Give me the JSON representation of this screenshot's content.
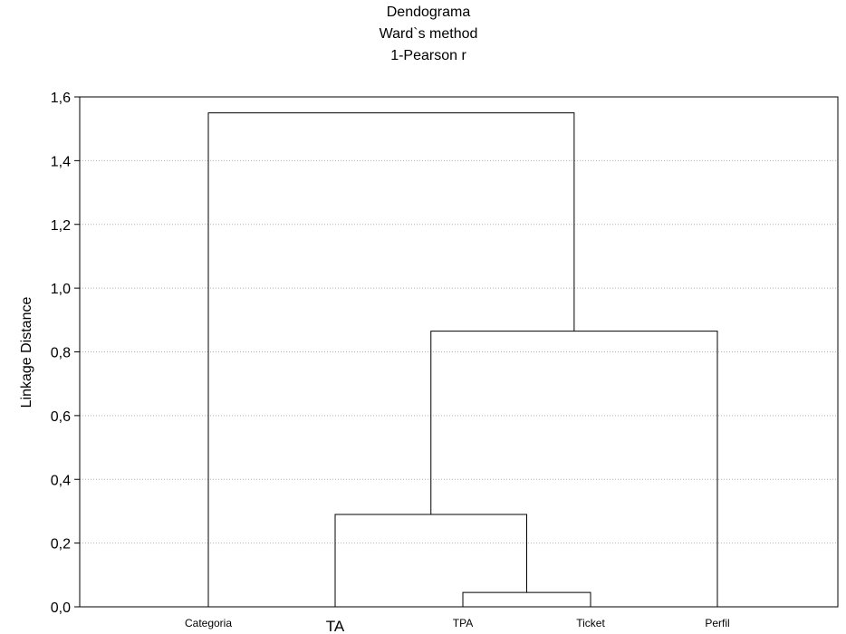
{
  "chart_data": {
    "type": "dendrogram",
    "title": [
      "Dendograma",
      "Ward`s method",
      "1-Pearson r"
    ],
    "ylabel": "Linkage Distance",
    "ylim": [
      0,
      1.6
    ],
    "yticks": [
      "0,0",
      "0,2",
      "0,4",
      "0,6",
      "0,8",
      "1,0",
      "1,2",
      "1,4",
      "1,6"
    ],
    "grid": "horizontal dotted",
    "leaves": [
      "Categoria",
      "TA",
      "TPA",
      "Ticket",
      "Perfil"
    ],
    "merges": [
      {
        "left": "TPA",
        "right": "Ticket",
        "height": 0.045
      },
      {
        "left": "TA",
        "right": "TPA+Ticket",
        "height": 0.29
      },
      {
        "left": "TA+TPA+Ticket",
        "right": "Perfil",
        "height": 0.865
      },
      {
        "left": "Categoria",
        "right": "TA+TPA+Ticket+Perfil",
        "height": 1.55
      }
    ]
  }
}
